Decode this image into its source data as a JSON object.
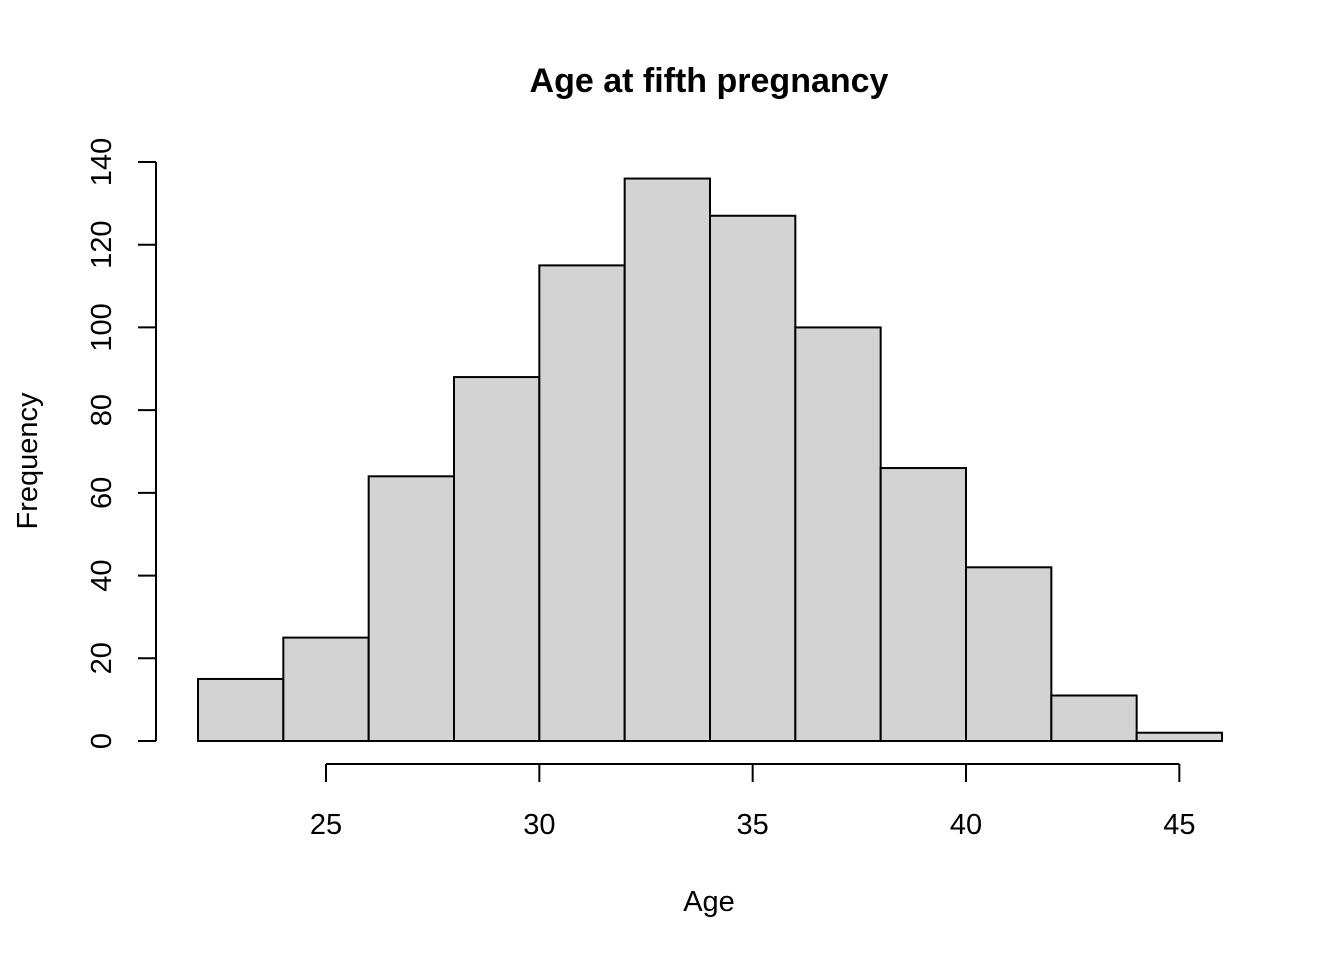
{
  "chart_data": {
    "type": "bar",
    "subtype": "histogram",
    "title": "Age at fifth pregnancy",
    "xlabel": "Age",
    "ylabel": "Frequency",
    "bin_edges": [
      22,
      24,
      26,
      28,
      30,
      32,
      34,
      36,
      38,
      40,
      42,
      44,
      46
    ],
    "values": [
      15,
      25,
      64,
      88,
      115,
      136,
      127,
      100,
      66,
      42,
      11,
      2
    ],
    "xticks": [
      25,
      30,
      35,
      40,
      45
    ],
    "yticks": [
      0,
      20,
      40,
      60,
      80,
      100,
      120,
      140
    ],
    "xlim": [
      22,
      46
    ],
    "ylim": [
      0,
      140
    ],
    "bar_color": "#d3d3d3",
    "edge_color": "#000000",
    "grid": false,
    "legend": "none"
  }
}
